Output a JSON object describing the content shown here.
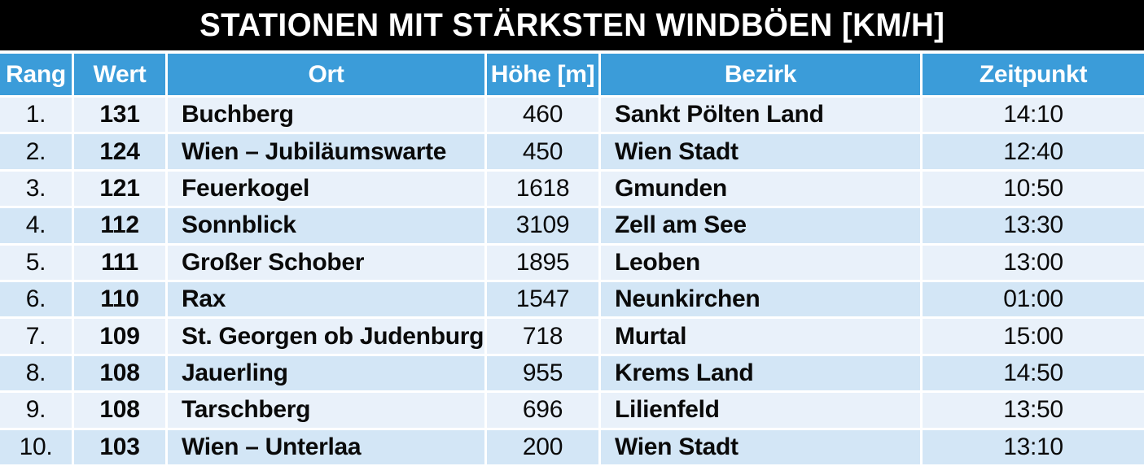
{
  "title_bar": {
    "title": "STATIONEN MIT STÄRKSTEN WINDBÖEN [KM/H]"
  },
  "chart_data": {
    "type": "table",
    "title": "STATIONEN MIT STÄRKSTEN WINDBÖEN [KM/H]",
    "unit": "km/h",
    "columns": [
      "Rang",
      "Wert",
      "Ort",
      "Höhe [m]",
      "Bezirk",
      "Zeitpunkt"
    ],
    "rows": [
      [
        "1.",
        "131",
        "Buchberg",
        "460",
        "Sankt Pölten Land",
        "14:10"
      ],
      [
        "2.",
        "124",
        "Wien – Jubiläumswarte",
        "450",
        "Wien Stadt",
        "12:40"
      ],
      [
        "3.",
        "121",
        "Feuerkogel",
        "1618",
        "Gmunden",
        "10:50"
      ],
      [
        "4.",
        "112",
        "Sonnblick",
        "3109",
        "Zell am See",
        "13:30"
      ],
      [
        "5.",
        "111",
        "Großer Schober",
        "1895",
        "Leoben",
        "13:00"
      ],
      [
        "6.",
        "110",
        "Rax",
        "1547",
        "Neunkirchen",
        "01:00"
      ],
      [
        "7.",
        "109",
        "St. Georgen ob Judenburg",
        "718",
        "Murtal",
        "15:00"
      ],
      [
        "8.",
        "108",
        "Jauerling",
        "955",
        "Krems Land",
        "14:50"
      ],
      [
        "9.",
        "108",
        "Tarschberg",
        "696",
        "Lilienfeld",
        "13:50"
      ],
      [
        "10.",
        "103",
        "Wien – Unterlaa",
        "200",
        "Wien Stadt",
        "13:10"
      ]
    ]
  },
  "colors": {
    "title_bg": "#000000",
    "title_text": "#ffffff",
    "header_bg": "#3b9cd9",
    "header_text": "#ffffff",
    "row_odd_bg": "#e9f1fa",
    "row_even_bg": "#d3e6f6",
    "cell_text": "#0a0a0a",
    "grid_lines": "#ffffff"
  }
}
